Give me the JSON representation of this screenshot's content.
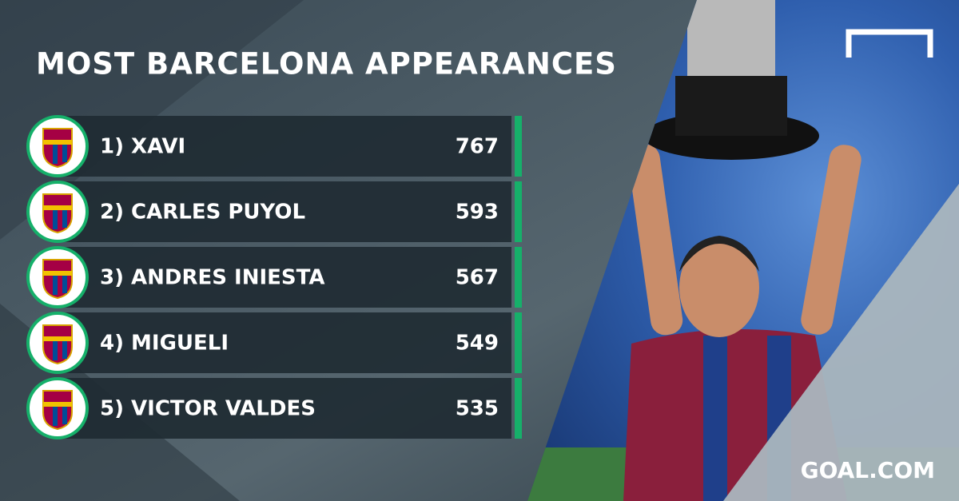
{
  "header": {
    "title": "MOST BARCELONA APPEARANCES"
  },
  "table": {
    "rows": [
      {
        "label": "1) XAVI",
        "value": 767
      },
      {
        "label": "2) CARLES PUYOL",
        "value": 593
      },
      {
        "label": "3) ANDRES INIESTA",
        "value": 567
      },
      {
        "label": "4) MIGUELI",
        "value": 549
      },
      {
        "label": "5) VICTOR VALDES",
        "value": 535
      }
    ]
  },
  "brand": {
    "text": "GOAL.COM"
  }
}
